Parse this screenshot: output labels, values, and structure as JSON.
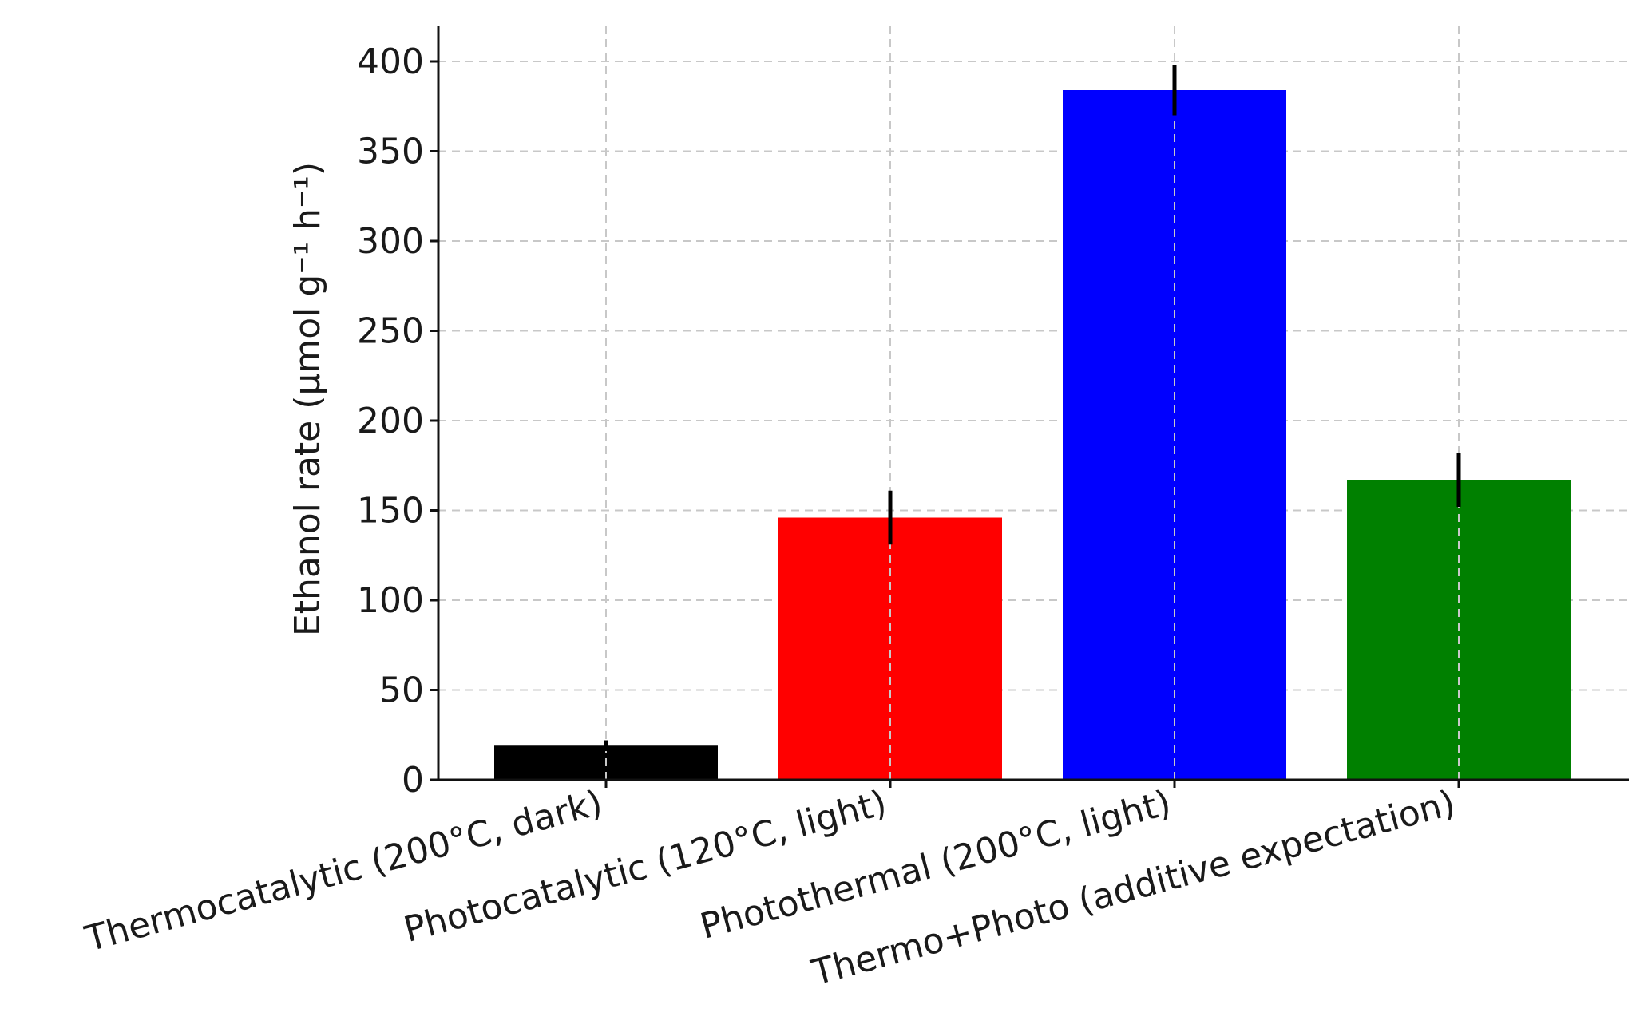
{
  "chart_data": {
    "type": "bar",
    "title": "",
    "xlabel": "",
    "ylabel": "Ethanol rate (μmol g⁻¹ h⁻¹)",
    "ylim": [
      0,
      420
    ],
    "yticks": [
      0,
      50,
      100,
      150,
      200,
      250,
      300,
      350,
      400
    ],
    "grid": true,
    "categories": [
      "Thermocatalytic (200°C, dark)",
      "Photocatalytic (120°C, light)",
      "Photothermal (200°C, light)",
      "Thermo+Photo (additive expectation)"
    ],
    "values": [
      19,
      146,
      384,
      167
    ],
    "errors": [
      3,
      15,
      14,
      15
    ],
    "colors": [
      "#000000",
      "#ff0000",
      "#0000ff",
      "#008000"
    ]
  }
}
